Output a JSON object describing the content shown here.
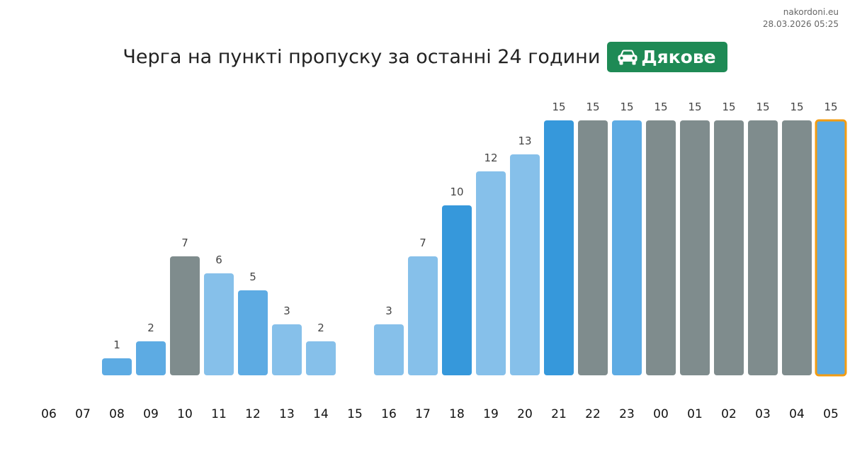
{
  "site": {
    "name": "nakordoni.eu",
    "timestamp": "28.03.2026 05:25"
  },
  "header": {
    "title": "Черга на пункті пропуску за останні 24 години",
    "badge_label": "Дякове",
    "badge_icon": "car-icon",
    "badge_color": "#1e8a55"
  },
  "colors": {
    "light_blue": "#86c0ea",
    "mid_blue": "#5dabe3",
    "dark_blue": "#3698db",
    "gray": "#7f8c8d",
    "current_outline": "#f39c12",
    "value_label": "#444444",
    "hour_label": "#111111"
  },
  "chart_data": {
    "type": "bar",
    "title": "Черга на пункті пропуску за останні 24 години",
    "xlabel": "",
    "ylabel": "",
    "ylim": [
      0,
      15
    ],
    "grid": false,
    "legend": "none",
    "categories": [
      "06",
      "07",
      "08",
      "09",
      "10",
      "11",
      "12",
      "13",
      "14",
      "15",
      "16",
      "17",
      "18",
      "19",
      "20",
      "21",
      "22",
      "23",
      "00",
      "01",
      "02",
      "03",
      "04",
      "05"
    ],
    "values": [
      null,
      null,
      1,
      2,
      7,
      6,
      5,
      3,
      2,
      null,
      3,
      7,
      10,
      12,
      13,
      15,
      15,
      15,
      15,
      15,
      15,
      15,
      15,
      15
    ],
    "bar_colors": [
      "light_blue",
      "light_blue",
      "mid_blue",
      "mid_blue",
      "gray",
      "light_blue",
      "mid_blue",
      "light_blue",
      "light_blue",
      "light_blue",
      "light_blue",
      "light_blue",
      "dark_blue",
      "light_blue",
      "light_blue",
      "dark_blue",
      "gray",
      "mid_blue",
      "gray",
      "gray",
      "gray",
      "gray",
      "gray",
      "mid_blue"
    ],
    "highlighted_category": "05"
  }
}
